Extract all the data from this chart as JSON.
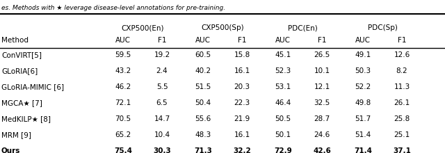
{
  "caption": "es. Methods with ★ leverage disease-level annotations for pre-training.",
  "col_groups": [
    "CXP500(En)",
    "CXP500(Sp)",
    "PDC(En)",
    "PDC(Sp)"
  ],
  "sub_cols": [
    "AUC",
    "F1"
  ],
  "methods": [
    "ConVIRT[5]",
    "GLoRIA[6]",
    "GLoRIA-MIMIC [6]",
    "MGCA★ [7]",
    "MedKILP★ [8]",
    "MRM [9]",
    "Ours"
  ],
  "data": [
    [
      59.5,
      19.2,
      60.5,
      15.8,
      45.1,
      26.5,
      49.1,
      12.6
    ],
    [
      43.2,
      2.4,
      40.2,
      16.1,
      52.3,
      10.1,
      50.3,
      8.2
    ],
    [
      46.2,
      5.5,
      51.5,
      20.3,
      53.1,
      12.1,
      52.2,
      11.3
    ],
    [
      72.1,
      6.5,
      50.4,
      22.3,
      46.4,
      32.5,
      49.8,
      26.1
    ],
    [
      70.5,
      14.7,
      55.6,
      21.9,
      50.5,
      28.7,
      51.7,
      25.8
    ],
    [
      65.2,
      10.4,
      48.3,
      16.1,
      50.1,
      24.6,
      51.4,
      25.1
    ],
    [
      75.4,
      30.3,
      71.3,
      32.2,
      72.9,
      42.6,
      71.4,
      37.1
    ]
  ],
  "bold_row": 6,
  "background_color": "#ffffff",
  "text_color": "#000000",
  "line_color": "#000000"
}
